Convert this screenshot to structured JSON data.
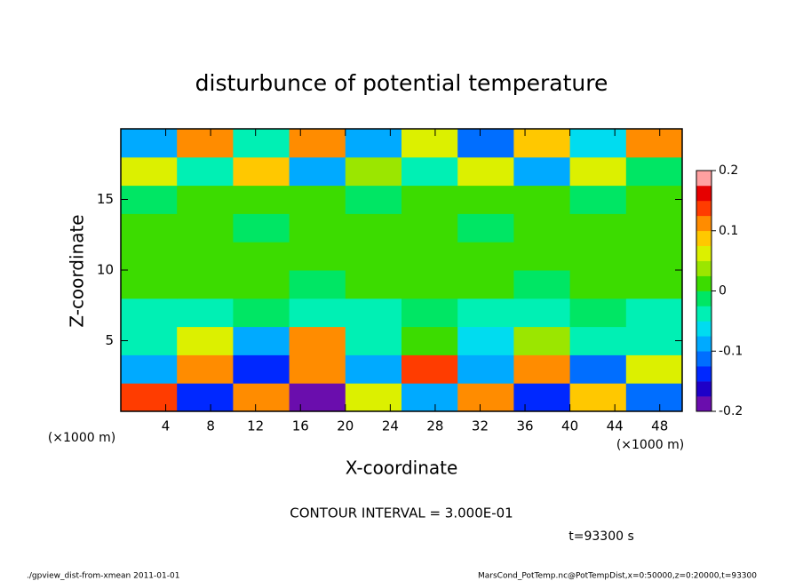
{
  "chart_data": {
    "type": "heatmap",
    "title": "disturbunce of potential temperature",
    "x_label": "X-coordinate",
    "y_label": "Z-coordinate",
    "x_unit": "(×1000 m)",
    "y_unit": "(×1000 m)",
    "x": [
      2.5,
      7.5,
      12.5,
      17.5,
      22.5,
      27.5,
      32.5,
      37.5,
      42.5,
      47.5
    ],
    "y": [
      1,
      3,
      5,
      7,
      9,
      11,
      13,
      15,
      17,
      19
    ],
    "z": [
      [
        0.15,
        -0.15,
        0.1,
        -0.18,
        0.05,
        -0.1,
        0.12,
        -0.15,
        0.08,
        -0.12
      ],
      [
        -0.1,
        0.12,
        -0.15,
        0.1,
        -0.08,
        0.15,
        -0.1,
        0.1,
        -0.12,
        0.05
      ],
      [
        -0.05,
        0.05,
        -0.08,
        0.1,
        -0.05,
        0.02,
        -0.06,
        0.03,
        -0.05,
        -0.04
      ],
      [
        -0.03,
        -0.03,
        -0.02,
        -0.03,
        -0.03,
        -0.02,
        -0.03,
        -0.03,
        -0.02,
        -0.03
      ],
      [
        0,
        0.01,
        0,
        -0.01,
        0,
        0,
        0,
        -0.01,
        0,
        0
      ],
      [
        0.01,
        0,
        0,
        0,
        0.01,
        0,
        0,
        0,
        0,
        0.01
      ],
      [
        0,
        0,
        -0.01,
        0,
        0,
        0,
        -0.01,
        0,
        0,
        0
      ],
      [
        -0.01,
        0,
        0,
        0,
        -0.01,
        0,
        0,
        0,
        -0.01,
        0
      ],
      [
        0.05,
        -0.05,
        0.08,
        -0.1,
        0.03,
        -0.04,
        0.06,
        -0.08,
        0.05,
        -0.02
      ],
      [
        -0.08,
        0.1,
        -0.05,
        0.12,
        -0.1,
        0.06,
        -0.12,
        0.08,
        -0.06,
        0.1
      ]
    ],
    "xlim": [
      0,
      50
    ],
    "ylim": [
      0,
      20
    ],
    "xticks": [
      4,
      8,
      12,
      16,
      20,
      24,
      28,
      32,
      36,
      40,
      44,
      48
    ],
    "yticks": [
      5,
      10,
      15
    ],
    "clim": [
      -0.2,
      0.2
    ],
    "cticks": [
      -0.2,
      -0.1,
      0,
      0.1,
      0.2
    ],
    "colors": [
      "#6a0dad",
      "#1e00c8",
      "#0028ff",
      "#006eff",
      "#00aaff",
      "#00dcf0",
      "#00f0b4",
      "#00e664",
      "#3cdc00",
      "#9be600",
      "#dcf000",
      "#ffc800",
      "#ff8c00",
      "#ff3c00",
      "#e60000",
      "#ffa0a0"
    ],
    "contour_note": "CONTOUR INTERVAL = 3.000E-01",
    "time_note": "t=93300 s",
    "footer_left": "./gpview_dist-from-xmean  2011-01-01",
    "footer_right": "MarsCond_PotTemp.nc@PotTempDist,x=0:50000,z=0:20000,t=93300"
  }
}
